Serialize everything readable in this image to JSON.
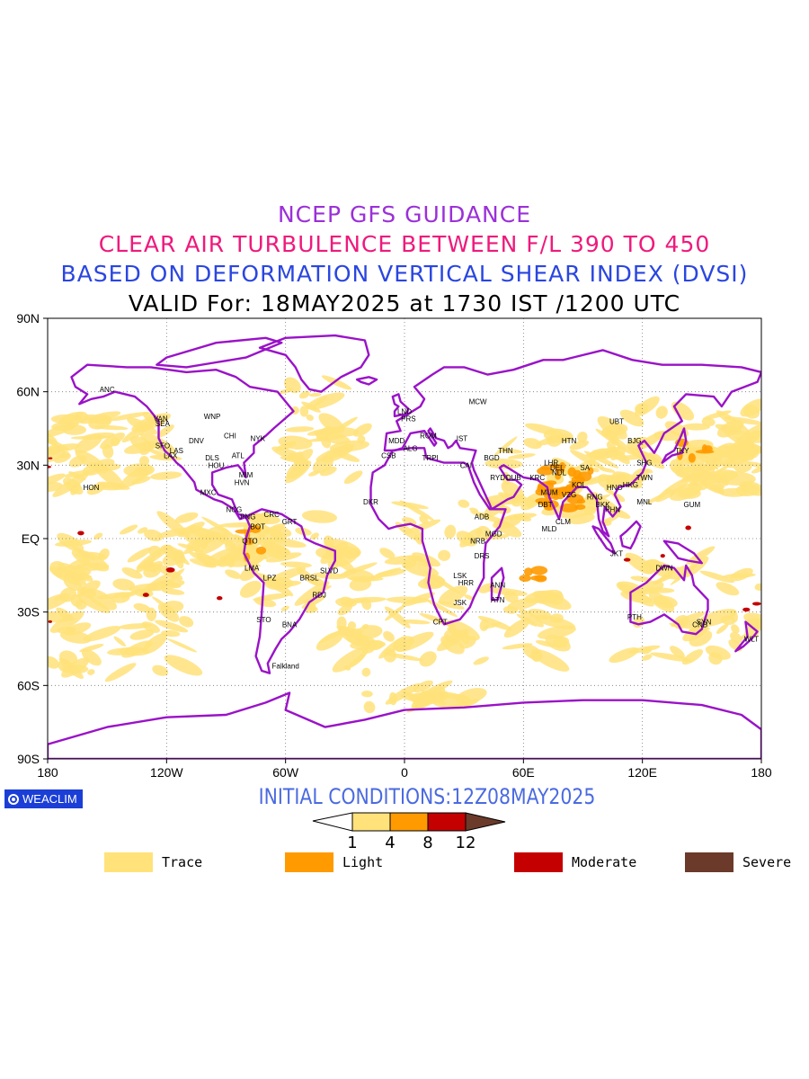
{
  "titles": {
    "line1": "NCEP GFS GUIDANCE",
    "line2": "CLEAR AIR TURBULENCE BETWEEN F/L 390 TO 450",
    "line3": "BASED ON DEFORMATION VERTICAL SHEAR INDEX (DVSI)",
    "line4": "VALID For: 18MAY2025 at 1730 IST /1200 UTC"
  },
  "colors": {
    "title1": "#9b30d8",
    "title2": "#ee1a7c",
    "title3": "#2a46e0",
    "title4": "#000000",
    "coast": "#9a12c8",
    "trace": "#ffe27a",
    "light": "#ff9a00",
    "moderate": "#c40000",
    "severe": "#6b3a2a",
    "logo_bg": "#1b3fd6",
    "init": "#4a6ae0"
  },
  "axes": {
    "lon_ticks": [
      "180",
      "120W",
      "60W",
      "0",
      "60E",
      "120E",
      "180"
    ],
    "lat_ticks": [
      "90N",
      "60N",
      "30N",
      "EQ",
      "30S",
      "60S",
      "90S"
    ]
  },
  "stations": [
    {
      "code": "ANC",
      "lon": -150,
      "lat": 61
    },
    {
      "code": "VAN",
      "lon": -123,
      "lat": 49
    },
    {
      "code": "WNP",
      "lon": -97,
      "lat": 50
    },
    {
      "code": "SEA",
      "lon": -122,
      "lat": 47
    },
    {
      "code": "DNV",
      "lon": -105,
      "lat": 40
    },
    {
      "code": "SFO",
      "lon": -122,
      "lat": 38
    },
    {
      "code": "LAS",
      "lon": -115,
      "lat": 36
    },
    {
      "code": "LAX",
      "lon": -118,
      "lat": 34
    },
    {
      "code": "DLS",
      "lon": -97,
      "lat": 33
    },
    {
      "code": "HOU",
      "lon": -95,
      "lat": 30
    },
    {
      "code": "CHI",
      "lon": -88,
      "lat": 42
    },
    {
      "code": "NYK",
      "lon": -74,
      "lat": 41
    },
    {
      "code": "ATL",
      "lon": -84,
      "lat": 34
    },
    {
      "code": "MIM",
      "lon": -80,
      "lat": 26
    },
    {
      "code": "HVN",
      "lon": -82,
      "lat": 23
    },
    {
      "code": "MXC",
      "lon": -99,
      "lat": 19
    },
    {
      "code": "HON",
      "lon": -158,
      "lat": 21
    },
    {
      "code": "NCG",
      "lon": -86,
      "lat": 12
    },
    {
      "code": "CRC",
      "lon": -67,
      "lat": 10
    },
    {
      "code": "PNG",
      "lon": -79,
      "lat": 9
    },
    {
      "code": "BOT",
      "lon": -74,
      "lat": 5
    },
    {
      "code": "GRT",
      "lon": -58,
      "lat": 7
    },
    {
      "code": "QTO",
      "lon": -78,
      "lat": -1
    },
    {
      "code": "LMA",
      "lon": -77,
      "lat": -12
    },
    {
      "code": "LPZ",
      "lon": -68,
      "lat": -16
    },
    {
      "code": "BRSL",
      "lon": -48,
      "lat": -16
    },
    {
      "code": "SLVD",
      "lon": -38,
      "lat": -13
    },
    {
      "code": "RDJ",
      "lon": -43,
      "lat": -23
    },
    {
      "code": "STO",
      "lon": -71,
      "lat": -33
    },
    {
      "code": "BNA",
      "lon": -58,
      "lat": -35
    },
    {
      "code": "Falkland",
      "lon": -60,
      "lat": -52
    },
    {
      "code": "MCW",
      "lon": 37,
      "lat": 56
    },
    {
      "code": "LND",
      "lon": 0,
      "lat": 52
    },
    {
      "code": "PRS",
      "lon": 2,
      "lat": 49
    },
    {
      "code": "MDD",
      "lon": -4,
      "lat": 40
    },
    {
      "code": "ROM",
      "lon": 12,
      "lat": 42
    },
    {
      "code": "IST",
      "lon": 29,
      "lat": 41
    },
    {
      "code": "ALG",
      "lon": 3,
      "lat": 37
    },
    {
      "code": "CSB",
      "lon": -8,
      "lat": 34
    },
    {
      "code": "TRPI",
      "lon": 13,
      "lat": 33
    },
    {
      "code": "CAI",
      "lon": 31,
      "lat": 30
    },
    {
      "code": "BGD",
      "lon": 44,
      "lat": 33
    },
    {
      "code": "THN",
      "lon": 51,
      "lat": 36
    },
    {
      "code": "RYD",
      "lon": 47,
      "lat": 25
    },
    {
      "code": "DUB",
      "lon": 55,
      "lat": 25
    },
    {
      "code": "KRC",
      "lon": 67,
      "lat": 25
    },
    {
      "code": "DKR",
      "lon": -17,
      "lat": 15
    },
    {
      "code": "ADB",
      "lon": 39,
      "lat": 9
    },
    {
      "code": "MGD",
      "lon": 45,
      "lat": 2
    },
    {
      "code": "NRB",
      "lon": 37,
      "lat": -1
    },
    {
      "code": "DRS",
      "lon": 39,
      "lat": -7
    },
    {
      "code": "ANN",
      "lon": 47,
      "lat": -19
    },
    {
      "code": "LSK",
      "lon": 28,
      "lat": -15
    },
    {
      "code": "HRR",
      "lon": 31,
      "lat": -18
    },
    {
      "code": "ATN",
      "lon": 47,
      "lat": -25
    },
    {
      "code": "JSK",
      "lon": 28,
      "lat": -26
    },
    {
      "code": "CPT",
      "lon": 18,
      "lat": -34
    },
    {
      "code": "DEL",
      "lon": 77,
      "lat": 29
    },
    {
      "code": "LHR",
      "lon": 74,
      "lat": 31
    },
    {
      "code": "NDL",
      "lon": 78,
      "lat": 27
    },
    {
      "code": "HTN",
      "lon": 83,
      "lat": 40
    },
    {
      "code": "SA",
      "lon": 91,
      "lat": 29
    },
    {
      "code": "KOL",
      "lon": 88,
      "lat": 22
    },
    {
      "code": "MUM",
      "lon": 73,
      "lat": 19
    },
    {
      "code": "VZG",
      "lon": 83,
      "lat": 18
    },
    {
      "code": "DBT",
      "lon": 71,
      "lat": 14
    },
    {
      "code": "CLM",
      "lon": 80,
      "lat": 7
    },
    {
      "code": "MLD",
      "lon": 73,
      "lat": 4
    },
    {
      "code": "RNG",
      "lon": 96,
      "lat": 17
    },
    {
      "code": "BKK",
      "lon": 100,
      "lat": 14
    },
    {
      "code": "HNO",
      "lon": 106,
      "lat": 21
    },
    {
      "code": "PHN",
      "lon": 105,
      "lat": 12
    },
    {
      "code": "HKG",
      "lon": 114,
      "lat": 22
    },
    {
      "code": "MNL",
      "lon": 121,
      "lat": 15
    },
    {
      "code": "SHG",
      "lon": 121,
      "lat": 31
    },
    {
      "code": "BJG",
      "lon": 116,
      "lat": 40
    },
    {
      "code": "UBT",
      "lon": 107,
      "lat": 48
    },
    {
      "code": "TKY",
      "lon": 140,
      "lat": 36
    },
    {
      "code": "TWN",
      "lon": 121,
      "lat": 25
    },
    {
      "code": "GUM",
      "lon": 145,
      "lat": 14
    },
    {
      "code": "JKT",
      "lon": 107,
      "lat": -6
    },
    {
      "code": "DWN",
      "lon": 131,
      "lat": -12
    },
    {
      "code": "PTH",
      "lon": 116,
      "lat": -32
    },
    {
      "code": "SYN",
      "lon": 151,
      "lat": -34
    },
    {
      "code": "CNB",
      "lon": 149,
      "lat": -35
    },
    {
      "code": "WLT",
      "lon": 175,
      "lat": -41
    }
  ],
  "initial_conditions": "INITIAL CONDITIONS:12Z08MAY2025",
  "logo_text": "WEACLIM",
  "scale_values": [
    "1",
    "4",
    "8",
    "12"
  ],
  "legend": [
    {
      "label": "Trace",
      "color": "#ffe27a"
    },
    {
      "label": "Light",
      "color": "#ff9a00"
    },
    {
      "label": "Moderate",
      "color": "#c40000"
    },
    {
      "label": "Severe",
      "color": "#6b3a2a"
    }
  ]
}
